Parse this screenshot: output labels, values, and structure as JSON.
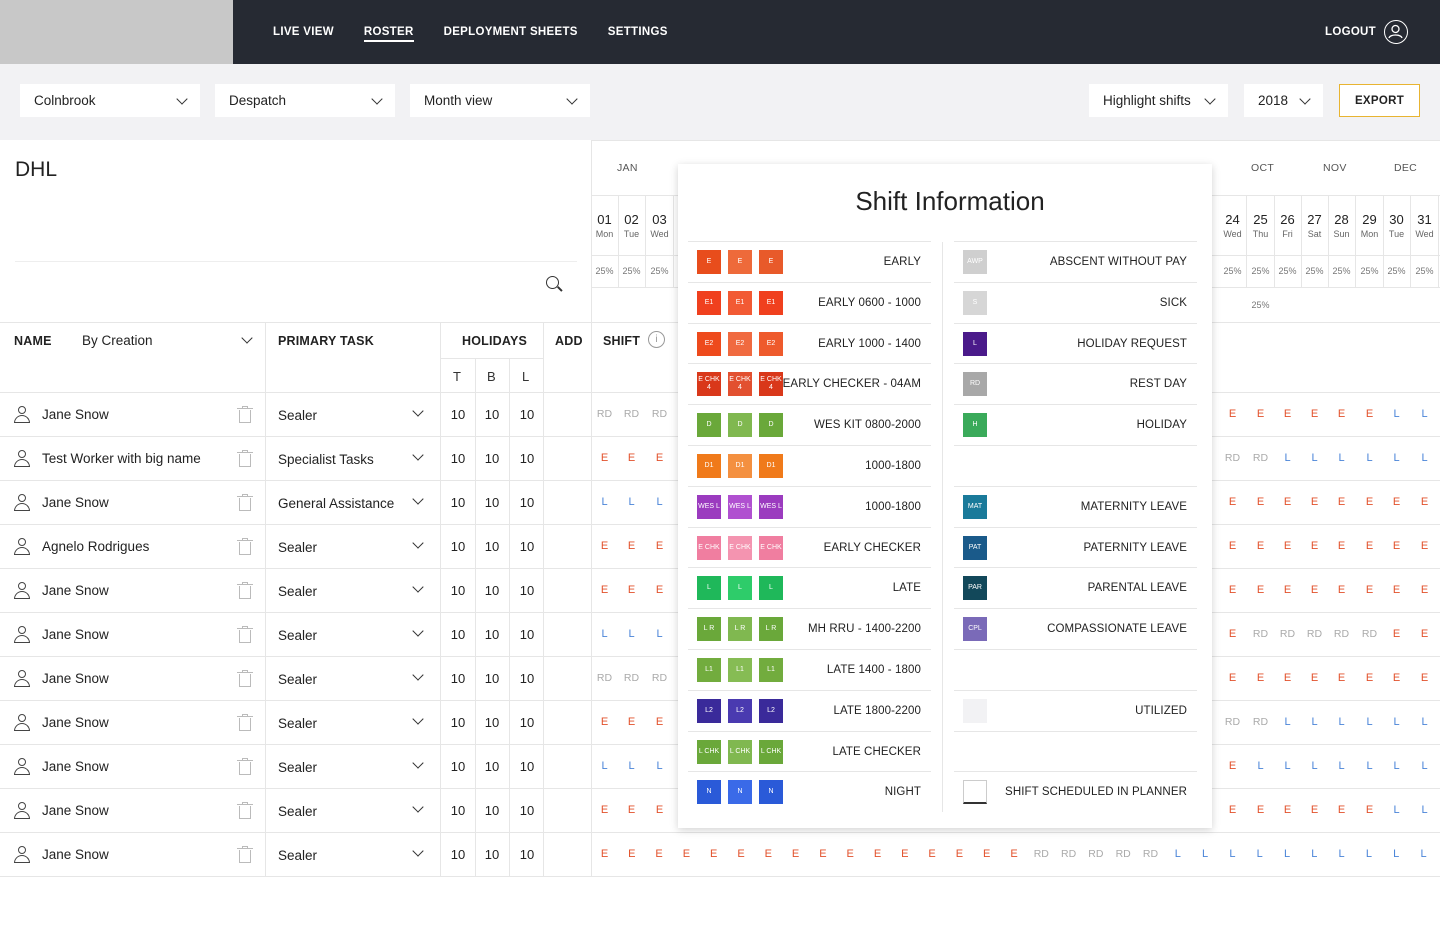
{
  "nav": {
    "items": [
      "LIVE VIEW",
      "ROSTER",
      "DEPLOYMENT SHEETS",
      "SETTINGS"
    ],
    "active": "ROSTER",
    "logout": "LOGOUT"
  },
  "filters": {
    "location": "Colnbrook",
    "department": "Despatch",
    "view": "Month view",
    "highlight": "Highlight shifts",
    "year": "2018",
    "export": "EXPORT"
  },
  "company": "DHL",
  "table": {
    "name_header": "NAME",
    "sort_value": "By Creation",
    "task_header": "PRIMARY TASK",
    "holidays_header": "HOLIDAYS",
    "holiday_cols": [
      "T",
      "B",
      "L"
    ],
    "add_header": "ADD",
    "shift_header": "SHIFT",
    "info_glyph": "i"
  },
  "calendar": {
    "months": [
      "JAN",
      "OCT",
      "NOV",
      "DEC"
    ],
    "left_days": [
      {
        "n": "01",
        "w": "Mon"
      },
      {
        "n": "02",
        "w": "Tue"
      },
      {
        "n": "03",
        "w": "Wed"
      }
    ],
    "right_days": [
      {
        "n": "24",
        "w": "Wed"
      },
      {
        "n": "25",
        "w": "Thu"
      },
      {
        "n": "26",
        "w": "Fri"
      },
      {
        "n": "27",
        "w": "Sat"
      },
      {
        "n": "28",
        "w": "Sun"
      },
      {
        "n": "29",
        "w": "Mon"
      },
      {
        "n": "30",
        "w": "Tue"
      },
      {
        "n": "31",
        "w": "Wed"
      }
    ],
    "pct": "25%"
  },
  "rows": [
    {
      "name": "Jane Snow",
      "task": "Sealer",
      "t": "10",
      "b": "10",
      "l": "10",
      "left": [
        "RD",
        "RD",
        "RD"
      ],
      "right": [
        "E",
        "E",
        "E",
        "E",
        "E",
        "E",
        "L",
        "L"
      ]
    },
    {
      "name": "Test Worker with big name",
      "task": "Specialist Tasks",
      "t": "10",
      "b": "10",
      "l": "10",
      "left": [
        "E",
        "E",
        "E"
      ],
      "right": [
        "RD",
        "RD",
        "L",
        "L",
        "L",
        "L",
        "L",
        "L"
      ]
    },
    {
      "name": "Jane Snow",
      "task": "General Assistance",
      "t": "10",
      "b": "10",
      "l": "10",
      "left": [
        "L",
        "L",
        "L"
      ],
      "right": [
        "E",
        "E",
        "E",
        "E",
        "E",
        "E",
        "E",
        "E"
      ]
    },
    {
      "name": "Agnelo Rodrigues",
      "task": "Sealer",
      "t": "10",
      "b": "10",
      "l": "10",
      "left": [
        "E",
        "E",
        "E"
      ],
      "right": [
        "E",
        "E",
        "E",
        "E",
        "E",
        "E",
        "E",
        "E"
      ]
    },
    {
      "name": "Jane Snow",
      "task": "Sealer",
      "t": "10",
      "b": "10",
      "l": "10",
      "left": [
        "E",
        "E",
        "E"
      ],
      "right": [
        "E",
        "E",
        "E",
        "E",
        "E",
        "E",
        "E",
        "E"
      ]
    },
    {
      "name": "Jane Snow",
      "task": "Sealer",
      "t": "10",
      "b": "10",
      "l": "10",
      "left": [
        "L",
        "L",
        "L"
      ],
      "right": [
        "E",
        "RD",
        "RD",
        "RD",
        "RD",
        "RD",
        "E",
        "E"
      ]
    },
    {
      "name": "Jane Snow",
      "task": "Sealer",
      "t": "10",
      "b": "10",
      "l": "10",
      "left": [
        "RD",
        "RD",
        "RD"
      ],
      "right": [
        "E",
        "E",
        "E",
        "E",
        "E",
        "E",
        "E",
        "E"
      ]
    },
    {
      "name": "Jane Snow",
      "task": "Sealer",
      "t": "10",
      "b": "10",
      "l": "10",
      "left": [
        "E",
        "E",
        "E"
      ],
      "right": [
        "RD",
        "RD",
        "L",
        "L",
        "L",
        "L",
        "L",
        "L"
      ]
    },
    {
      "name": "Jane Snow",
      "task": "Sealer",
      "t": "10",
      "b": "10",
      "l": "10",
      "left": [
        "L",
        "L",
        "L"
      ],
      "right": [
        "E",
        "L",
        "L",
        "L",
        "L",
        "L",
        "L",
        "L"
      ]
    },
    {
      "name": "Jane Snow",
      "task": "Sealer",
      "t": "10",
      "b": "10",
      "l": "10",
      "left": [
        "E",
        "E",
        "E"
      ],
      "right": [
        "E",
        "E",
        "E",
        "E",
        "E",
        "E",
        "L",
        "L"
      ]
    },
    {
      "name": "Jane Snow",
      "task": "Sealer",
      "t": "10",
      "b": "10",
      "l": "10",
      "left": [
        "E",
        "E",
        "E"
      ],
      "right": [
        "L",
        "L",
        "L",
        "L",
        "L",
        "L",
        "L",
        "L"
      ]
    }
  ],
  "last_row_full": [
    "E",
    "E",
    "E",
    "E",
    "E",
    "E",
    "E",
    "E",
    "E",
    "E",
    "E",
    "E",
    "E",
    "E",
    "E",
    "E",
    "RD",
    "RD",
    "RD",
    "RD",
    "RD",
    "L",
    "L",
    "L",
    "L",
    "L",
    "L",
    "L",
    "L",
    "L",
    "L"
  ],
  "popup": {
    "title": "Shift Information",
    "left": [
      {
        "label": "EARLY",
        "code": "E",
        "colors": [
          "#e84d1c",
          "#ee6a3a",
          "#e85a2a"
        ]
      },
      {
        "label": "EARLY 0600 - 1000",
        "code": "E1",
        "colors": [
          "#f0401e",
          "#f25a34",
          "#f0401e"
        ]
      },
      {
        "label": "EARLY 1000 - 1400",
        "code": "E2",
        "colors": [
          "#ee4a1c",
          "#f06a40",
          "#ee5a2c"
        ]
      },
      {
        "label": "EARLY CHECKER - 04AM",
        "code": "E CHK 4",
        "colors": [
          "#d9381a",
          "#e25030",
          "#d9381a"
        ]
      },
      {
        "label": "WES KIT 0800-2000",
        "code": "D",
        "colors": [
          "#6aa83a",
          "#80b850",
          "#6aa83a"
        ]
      },
      {
        "label": "1000-1800",
        "code": "D1",
        "colors": [
          "#f07a1a",
          "#f49040",
          "#f07a1a"
        ]
      },
      {
        "label": "1000-1800",
        "code": "WES L",
        "colors": [
          "#9b3bbf",
          "#b050d0",
          "#9b3bbf"
        ]
      },
      {
        "label": "EARLY CHECKER",
        "code": "E CHK",
        "colors": [
          "#f07ea0",
          "#f494b0",
          "#f07ea0"
        ]
      },
      {
        "label": "LATE",
        "code": "L",
        "colors": [
          "#1fb85a",
          "#2ecc6a",
          "#1fb85a"
        ]
      },
      {
        "label": "MH RRU - 1400-2200",
        "code": "L R",
        "colors": [
          "#6aa83a",
          "#80b850",
          "#6aa83a"
        ]
      },
      {
        "label": "LATE 1400 - 1800",
        "code": "L1",
        "colors": [
          "#72ac3e",
          "#86bc54",
          "#72ac3e"
        ]
      },
      {
        "label": "LATE 1800-2200",
        "code": "L2",
        "colors": [
          "#3a2a9a",
          "#4a3ab0",
          "#3a2a9a"
        ]
      },
      {
        "label": "LATE CHECKER",
        "code": "L CHK",
        "colors": [
          "#6aa83a",
          "#80b850",
          "#6aa83a"
        ]
      },
      {
        "label": "NIGHT",
        "code": "N",
        "colors": [
          "#2a5ad8",
          "#3a6ae8",
          "#2a5ad8"
        ]
      }
    ],
    "right": [
      {
        "label": "ABSCENT WITHOUT PAY",
        "code": "AWP",
        "color": "#cfcfcf"
      },
      {
        "label": "SICK",
        "code": "S",
        "color": "#d6d6d6"
      },
      {
        "label": "HOLIDAY REQUEST",
        "code": "L",
        "color": "#4a1a8a"
      },
      {
        "label": "REST DAY",
        "code": "RD",
        "color": "#a8a8a8"
      },
      {
        "label": "HOLIDAY",
        "code": "H",
        "color": "#3aaa5a"
      },
      {
        "label": "",
        "code": "",
        "color": ""
      },
      {
        "label": "MATERNITY LEAVE",
        "code": "MAT",
        "color": "#1a7a9a"
      },
      {
        "label": "PATERNITY LEAVE",
        "code": "PAT",
        "color": "#1a5a8a"
      },
      {
        "label": "PARENTAL LEAVE",
        "code": "PAR",
        "color": "#12485a"
      },
      {
        "label": "COMPASSIONATE LEAVE",
        "code": "CPL",
        "color": "#7a6ab8"
      },
      {
        "label": "",
        "code": "",
        "color": ""
      },
      {
        "label": "UTILIZED",
        "code": "",
        "color": "#f2f2f4"
      },
      {
        "label": "",
        "code": "",
        "color": ""
      },
      {
        "label": "SHIFT SCHEDULED IN PLANNER",
        "code": "",
        "color": "#ffffff"
      }
    ]
  }
}
